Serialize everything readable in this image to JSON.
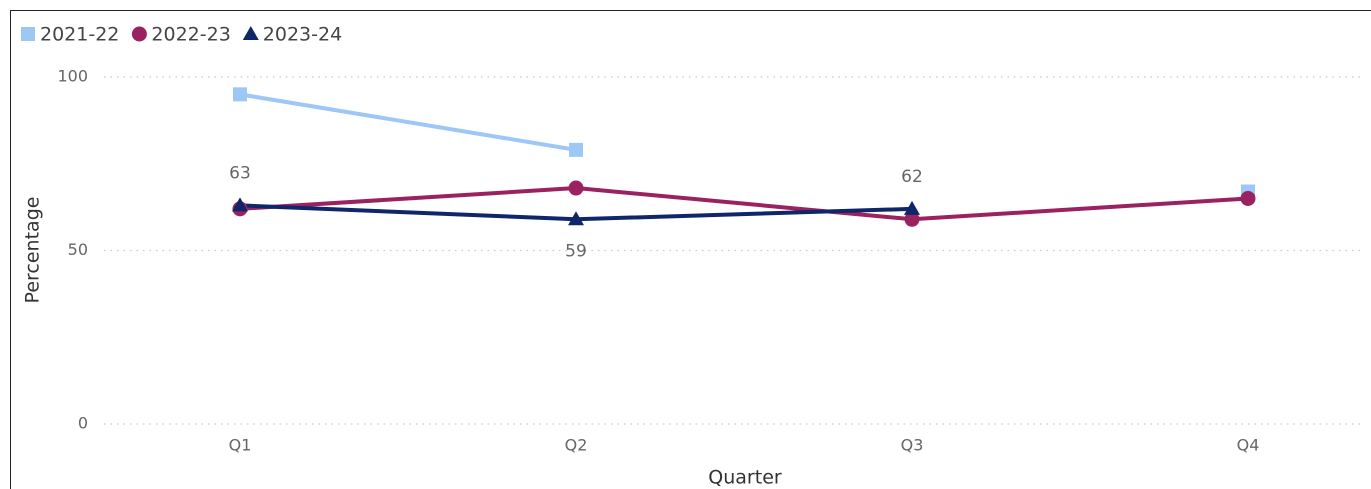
{
  "chart_data": {
    "type": "line",
    "categories": [
      "Q1",
      "Q2",
      "Q3",
      "Q4"
    ],
    "series": [
      {
        "name": "2021-22",
        "color": "#9dc8f5",
        "marker": "square",
        "values": [
          95,
          79,
          null,
          67
        ]
      },
      {
        "name": "2022-23",
        "color": "#9a2260",
        "marker": "circle",
        "values": [
          62,
          68,
          59,
          65
        ]
      },
      {
        "name": "2023-24",
        "color": "#10266b",
        "marker": "triangle",
        "data_labels": true,
        "values": [
          63,
          59,
          62,
          null
        ]
      }
    ],
    "ylim": [
      0,
      100
    ],
    "yticks": [
      0,
      50,
      100
    ],
    "grid": true,
    "y_label": "Percentage",
    "x_label": "Quarter"
  }
}
